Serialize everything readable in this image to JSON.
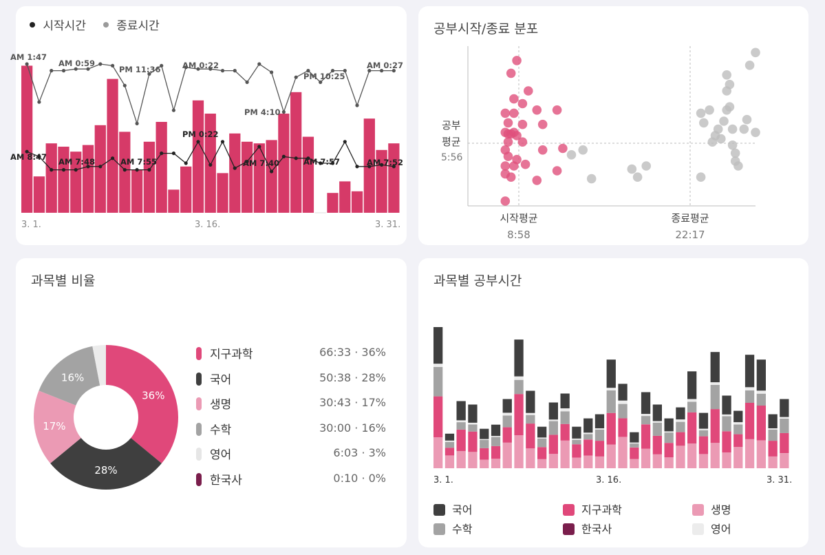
{
  "colors": {
    "accent": "#d63a68",
    "start_line": "#222222",
    "end_line": "#555555",
    "scatter_start": "#e0507c",
    "scatter_end": "#bdbdbd",
    "subj_korean": "#3f3f3f",
    "subj_earth": "#e0487a",
    "subj_bio": "#eb9ab4",
    "subj_math": "#a3a3a3",
    "subj_english": "#ececec",
    "subj_history": "#7a1e4c"
  },
  "timeline": {
    "legend_start": "시작시간",
    "legend_end": "종료시간",
    "x_ticks": [
      "3. 1.",
      "3. 16.",
      "3. 31."
    ],
    "end_annotations": [
      "AM 1:47",
      "AM 0:59",
      "PM 11:36",
      "AM 0:22",
      "PM 4:10",
      "PM 10:25",
      "AM 0:27"
    ],
    "start_annotations": [
      "AM 8:47",
      "AM 7:48",
      "AM 7:55",
      "PM 0:22",
      "AM 7:40",
      "AM 7:57",
      "AM 7:52"
    ]
  },
  "scatter": {
    "title": "공부시작/종료 분포",
    "y_label_line1": "공부",
    "y_label_line2": "평균",
    "y_avg": "5:56",
    "x_label_start": "시작평균",
    "x_value_start": "8:58",
    "x_label_end": "종료평균",
    "x_value_end": "22:17"
  },
  "pie": {
    "title": "과목별 비율",
    "legend": [
      {
        "name": "지구과학",
        "value": "66:33 · 36%",
        "color": "#e0487a"
      },
      {
        "name": "국어",
        "value": "50:38 · 28%",
        "color": "#3f3f3f"
      },
      {
        "name": "생명",
        "value": "30:43 · 17%",
        "color": "#eb9ab4"
      },
      {
        "name": "수학",
        "value": "30:00 · 16%",
        "color": "#a3a3a3"
      },
      {
        "name": "영어",
        "value": "6:03 · 3%",
        "color": "#ececec"
      },
      {
        "name": "한국사",
        "value": "0:10 · 0%",
        "color": "#7a1e4c"
      }
    ],
    "slice_labels": [
      "36%",
      "28%",
      "17%",
      "16%"
    ]
  },
  "stacked": {
    "title": "과목별 공부시간",
    "x_ticks": [
      "3. 1.",
      "3. 16.",
      "3. 31."
    ],
    "legend": [
      {
        "name": "국어",
        "color": "#3f3f3f"
      },
      {
        "name": "지구과학",
        "color": "#e0487a"
      },
      {
        "name": "생명",
        "color": "#eb9ab4"
      },
      {
        "name": "수학",
        "color": "#a3a3a3"
      },
      {
        "name": "한국사",
        "color": "#7a1e4c"
      },
      {
        "name": "영어",
        "color": "#ececec"
      }
    ]
  },
  "chart_data": [
    {
      "type": "bar",
      "subtype": "bar-with-lines",
      "categories": [
        "3. 1.",
        "3. 2.",
        "3. 3.",
        "3. 4.",
        "3. 5.",
        "3. 6.",
        "3. 7.",
        "3. 8.",
        "3. 9.",
        "3. 10.",
        "3. 11.",
        "3. 12.",
        "3. 13.",
        "3. 14.",
        "3. 15.",
        "3. 16.",
        "3. 17.",
        "3. 18.",
        "3. 19.",
        "3. 20.",
        "3. 21.",
        "3. 22.",
        "3. 23.",
        "3. 24.",
        "3. 25.",
        "3. 26.",
        "3. 27.",
        "3. 28.",
        "3. 29.",
        "3. 30.",
        "3. 31."
      ],
      "bar_values": [
        0.89,
        0.22,
        0.42,
        0.4,
        0.37,
        0.41,
        0.53,
        0.81,
        0.49,
        0.26,
        0.43,
        0.55,
        0.14,
        0.28,
        0.68,
        0.6,
        0.24,
        0.48,
        0.43,
        0.42,
        0.44,
        0.6,
        0.73,
        0.46,
        0.0,
        0.12,
        0.19,
        0.13,
        0.57,
        0.38,
        0.42
      ],
      "series": [
        {
          "name": "종료시간",
          "values": [
            0.9,
            0.67,
            0.86,
            0.86,
            0.87,
            0.87,
            0.9,
            0.89,
            0.77,
            0.54,
            0.84,
            0.89,
            0.62,
            0.88,
            0.87,
            0.87,
            0.86,
            0.86,
            0.79,
            0.9,
            0.85,
            0.61,
            0.82,
            0.86,
            0.79,
            0.86,
            0.86,
            0.65,
            0.86,
            0.86,
            0.86
          ]
        },
        {
          "name": "시작시간",
          "values": [
            0.37,
            0.34,
            0.26,
            0.26,
            0.26,
            0.28,
            0.28,
            0.33,
            0.26,
            0.26,
            0.26,
            0.36,
            0.36,
            0.3,
            0.43,
            0.29,
            0.43,
            0.27,
            0.31,
            0.4,
            0.25,
            0.34,
            0.33,
            0.33,
            0.3,
            0.3,
            0.43,
            0.28,
            0.28,
            0.29,
            0.28
          ]
        }
      ]
    },
    {
      "type": "scatter",
      "title": "공부시작/종료 분포",
      "series": [
        {
          "name": "시작",
          "points": [
            [
              0.17,
              0.91
            ],
            [
              0.15,
              0.83
            ],
            [
              0.21,
              0.72
            ],
            [
              0.16,
              0.67
            ],
            [
              0.19,
              0.64
            ],
            [
              0.13,
              0.58
            ],
            [
              0.16,
              0.58
            ],
            [
              0.24,
              0.6
            ],
            [
              0.31,
              0.6
            ],
            [
              0.14,
              0.52
            ],
            [
              0.19,
              0.51
            ],
            [
              0.26,
              0.51
            ],
            [
              0.13,
              0.46
            ],
            [
              0.14,
              0.45
            ],
            [
              0.15,
              0.45
            ],
            [
              0.16,
              0.46
            ],
            [
              0.17,
              0.44
            ],
            [
              0.14,
              0.4
            ],
            [
              0.19,
              0.4
            ],
            [
              0.13,
              0.35
            ],
            [
              0.26,
              0.35
            ],
            [
              0.33,
              0.36
            ],
            [
              0.14,
              0.31
            ],
            [
              0.17,
              0.29
            ],
            [
              0.13,
              0.25
            ],
            [
              0.16,
              0.25
            ],
            [
              0.2,
              0.26
            ],
            [
              0.31,
              0.22
            ],
            [
              0.13,
              0.2
            ],
            [
              0.15,
              0.18
            ],
            [
              0.24,
              0.16
            ],
            [
              0.13,
              0.03
            ]
          ]
        },
        {
          "name": "종료",
          "points": [
            [
              0.81,
              0.58
            ],
            [
              0.82,
              0.52
            ],
            [
              0.81,
              0.18
            ],
            [
              0.84,
              0.6
            ],
            [
              0.85,
              0.4
            ],
            [
              0.86,
              0.44
            ],
            [
              0.87,
              0.48
            ],
            [
              0.88,
              0.42
            ],
            [
              0.89,
              0.53
            ],
            [
              0.9,
              0.6
            ],
            [
              0.9,
              0.72
            ],
            [
              0.9,
              0.82
            ],
            [
              0.91,
              0.76
            ],
            [
              0.91,
              0.62
            ],
            [
              0.92,
              0.48
            ],
            [
              0.92,
              0.38
            ],
            [
              0.93,
              0.33
            ],
            [
              0.93,
              0.28
            ],
            [
              0.94,
              0.25
            ],
            [
              0.96,
              0.48
            ],
            [
              0.97,
              0.54
            ],
            [
              0.98,
              0.88
            ],
            [
              1.0,
              0.96
            ],
            [
              1.0,
              0.46
            ],
            [
              0.36,
              0.32
            ],
            [
              0.4,
              0.35
            ],
            [
              0.57,
              0.23
            ],
            [
              0.59,
              0.18
            ],
            [
              0.62,
              0.25
            ],
            [
              0.43,
              0.17
            ]
          ]
        }
      ]
    },
    {
      "type": "pie",
      "title": "과목별 비율",
      "categories": [
        "지구과학",
        "국어",
        "생명",
        "수학",
        "영어",
        "한국사"
      ],
      "values": [
        36,
        28,
        17,
        16,
        3,
        0
      ]
    },
    {
      "type": "bar",
      "subtype": "stacked",
      "title": "과목별 공부시간",
      "categories": [
        "3. 1.",
        "3. 2.",
        "3. 3.",
        "3. 4.",
        "3. 5.",
        "3. 6.",
        "3. 7.",
        "3. 8.",
        "3. 9.",
        "3. 10.",
        "3. 11.",
        "3. 12.",
        "3. 13.",
        "3. 14.",
        "3. 15.",
        "3. 16.",
        "3. 17.",
        "3. 18.",
        "3. 19.",
        "3. 20.",
        "3. 21.",
        "3. 22.",
        "3. 23.",
        "3. 24.",
        "3. 25.",
        "3. 26.",
        "3. 27.",
        "3. 28.",
        "3. 29.",
        "3. 30.",
        "3. 31."
      ],
      "series": [
        {
          "name": "생명",
          "values": [
            70,
            12,
            0,
            0,
            0,
            10,
            30,
            0,
            0,
            0,
            0,
            0,
            0,
            0,
            0,
            36,
            0,
            0,
            0,
            0,
            0,
            50,
            0,
            0,
            0,
            0,
            0,
            0,
            0,
            0,
            0
          ]
        },
        {
          "name": "한국사",
          "values": [
            0,
            0,
            0,
            0,
            0,
            0,
            0,
            0,
            0,
            0,
            0,
            0,
            0,
            0,
            0,
            0,
            0,
            0,
            0,
            0,
            0,
            0,
            0,
            0,
            0,
            0,
            0,
            0,
            0,
            0,
            0
          ]
        },
        {
          "name": "영어",
          "values": [
            0,
            0,
            0,
            0,
            0,
            0,
            0,
            0,
            0,
            0,
            0,
            0,
            0,
            0,
            0,
            0,
            0,
            0,
            0,
            0,
            0,
            0,
            0,
            0,
            0,
            0,
            0,
            0,
            0,
            0,
            0
          ]
        },
        {
          "name": "수학",
          "values": [
            0,
            12,
            30,
            34,
            24,
            38,
            20,
            0,
            0,
            0,
            0,
            0,
            0,
            0,
            0,
            0,
            0,
            0,
            0,
            0,
            0,
            0,
            0,
            0,
            0,
            0,
            0,
            0,
            0,
            0,
            0
          ]
        },
        {
          "name": "지구과학",
          "values": [
            58,
            0,
            0,
            0,
            0,
            0,
            0,
            0,
            0,
            0,
            0,
            0,
            0,
            0,
            0,
            58,
            0,
            0,
            0,
            0,
            0,
            70,
            0,
            0,
            0,
            0,
            0,
            0,
            0,
            0,
            0
          ]
        },
        {
          "name": "국어",
          "values": [
            76,
            0,
            0,
            0,
            0,
            0,
            0,
            0,
            0,
            0,
            0,
            0,
            0,
            0,
            0,
            80,
            0,
            0,
            0,
            0,
            0,
            0,
            0,
            0,
            0,
            0,
            0,
            0,
            0,
            0,
            0
          ]
        }
      ],
      "totals": [
        204,
        50,
        97,
        92,
        57,
        63,
        100,
        186,
        112,
        60,
        95,
        108,
        60,
        72,
        78,
        157,
        122,
        52,
        110,
        92,
        72,
        88,
        140,
        80,
        168,
        105,
        83,
        164,
        157,
        78,
        100
      ]
    }
  ]
}
